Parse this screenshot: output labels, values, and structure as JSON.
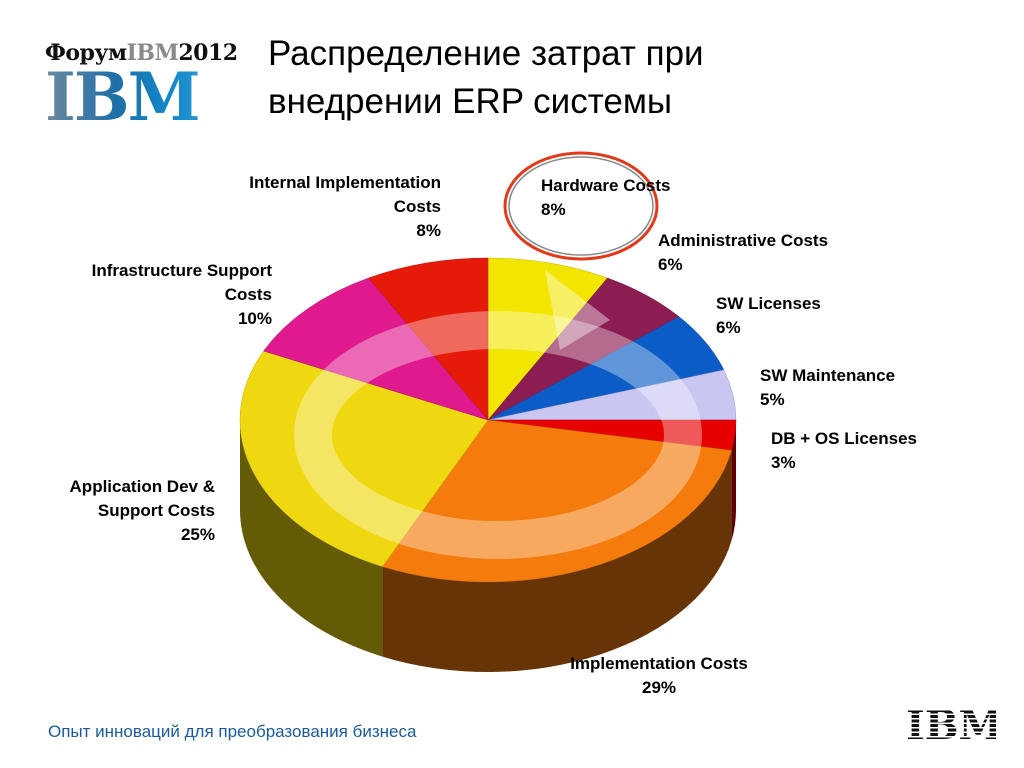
{
  "logo": {
    "text_prefix": "Форум",
    "text_ibm": "IBM",
    "text_year": "2012",
    "big": "IBM"
  },
  "title_lines": [
    "Распределение затрат при",
    "внедрении ERP системы"
  ],
  "footer": "Опыт инноваций для преобразования бизнеса",
  "footer_logo": "IBM",
  "chart_data": {
    "type": "pie",
    "style": "3d",
    "title": "Распределение затрат при внедрении ERP системы",
    "slices": [
      {
        "label": "Hardware Costs",
        "value": 8,
        "color": "#f2e600",
        "highlighted": true
      },
      {
        "label": "Administrative Costs",
        "value": 6,
        "color": "#8c1d52"
      },
      {
        "label": "SW Licenses",
        "value": 6,
        "color": "#0b5cc6"
      },
      {
        "label": "SW Maintenance",
        "value": 5,
        "color": "#c9c6f2"
      },
      {
        "label": "DB + OS Licenses",
        "value": 3,
        "color": "#e60000"
      },
      {
        "label": "Implementation Costs",
        "value": 29,
        "color": "#f47b0c"
      },
      {
        "label": "Application Dev & Support Costs",
        "value": 25,
        "color": "#efd810"
      },
      {
        "label": "Infrastructure Support Costs",
        "value": 10,
        "color": "#e01a8e"
      },
      {
        "label": "Internal Implementation Costs",
        "value": 8,
        "color": "#e61a08"
      }
    ],
    "highlight_color": "#e03a1a"
  }
}
